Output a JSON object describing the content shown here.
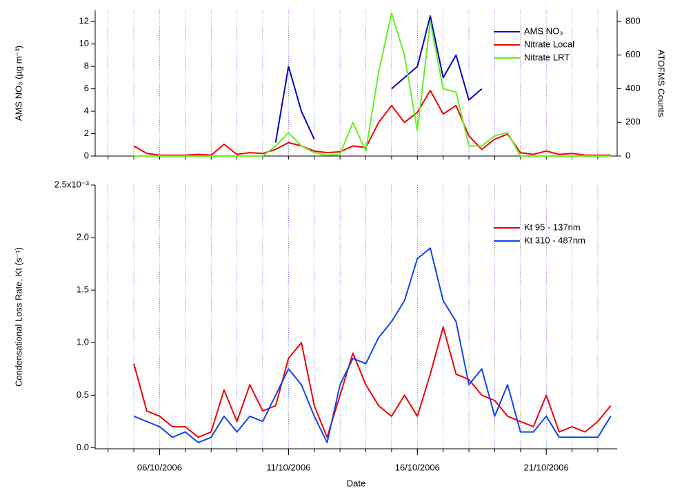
{
  "chart_data": [
    {
      "type": "line",
      "ylabel": "AMS NO₃ (µg m⁻³)",
      "y2label": "ATOFMS Counts",
      "xlim": [
        3.5,
        23.75
      ],
      "xgrid": [
        4,
        5,
        6,
        7,
        8,
        9,
        10,
        11,
        12,
        13,
        14,
        15,
        16,
        17,
        18,
        19,
        20,
        21,
        22,
        23
      ],
      "ylim": [
        0,
        13
      ],
      "yticks": [
        0,
        2,
        4,
        6,
        8,
        10,
        12
      ],
      "y2lim": [
        0,
        866
      ],
      "y2ticks": [
        0,
        200,
        400,
        600,
        800
      ],
      "x": [
        5,
        5.5,
        6,
        6.5,
        7,
        7.5,
        8,
        8.5,
        9,
        9.5,
        10,
        10.5,
        11,
        11.5,
        12,
        12.5,
        13,
        13.5,
        14,
        14.5,
        15,
        15.5,
        16,
        16.5,
        17,
        17.5,
        18,
        18.5,
        19,
        19.5,
        20,
        20.5,
        21,
        21.5,
        22,
        22.5,
        23,
        23.5
      ],
      "series": [
        {
          "name": "AMS NO₃",
          "color": "#0000cc",
          "values": [
            null,
            null,
            null,
            null,
            null,
            null,
            null,
            null,
            null,
            null,
            null,
            1.2,
            8,
            4,
            1.5,
            null,
            null,
            2.5,
            null,
            null,
            6,
            7,
            8,
            12.5,
            7,
            9,
            5,
            6,
            null,
            null,
            null,
            null,
            null,
            null,
            null,
            null,
            null,
            null
          ]
        },
        {
          "name": "Nitrate Local",
          "color": "#ee0000",
          "axis": "y2",
          "values": [
            60,
            15,
            5,
            5,
            5,
            10,
            5,
            70,
            10,
            20,
            15,
            40,
            80,
            60,
            30,
            20,
            25,
            60,
            50,
            200,
            300,
            200,
            260,
            390,
            250,
            300,
            120,
            40,
            100,
            130,
            20,
            10,
            30,
            10,
            15,
            5,
            5,
            5
          ]
        },
        {
          "name": "Nitrate LRT",
          "color": "#66ee22",
          "axis": "y2",
          "values": [
            0,
            0,
            0,
            0,
            0,
            0,
            0,
            0,
            0,
            0,
            0,
            60,
            140,
            60,
            20,
            5,
            10,
            200,
            30,
            500,
            850,
            600,
            150,
            800,
            400,
            380,
            60,
            60,
            120,
            140,
            0,
            0,
            0,
            0,
            0,
            0,
            0,
            0
          ]
        }
      ]
    },
    {
      "type": "line",
      "xlabel": "Date",
      "ylabel": "Condensational Loss Rate, Kt (s⁻¹)",
      "xlim": [
        3.5,
        23.75
      ],
      "xgrid": [
        4,
        5,
        6,
        7,
        8,
        9,
        10,
        11,
        12,
        13,
        14,
        15,
        16,
        17,
        18,
        19,
        20,
        21,
        22,
        23
      ],
      "xticks": [
        {
          "value": 6,
          "label": "06/10/2006"
        },
        {
          "value": 11,
          "label": "11/10/2006"
        },
        {
          "value": 16,
          "label": "16/10/2006"
        },
        {
          "value": 21,
          "label": "21/10/2006"
        }
      ],
      "ylim": [
        -0.01,
        2.5
      ],
      "yticks": [
        {
          "value": 0,
          "label": "0.0"
        },
        0.5,
        {
          "value": 1,
          "label": "1.0"
        },
        1.5,
        {
          "value": 2,
          "label": "2.0"
        },
        {
          "value": 2.5,
          "label": "2.5x10⁻³"
        }
      ],
      "x": [
        5,
        5.5,
        6,
        6.5,
        7,
        7.5,
        8,
        8.5,
        9,
        9.5,
        10,
        10.5,
        11,
        11.5,
        12,
        12.5,
        13,
        13.5,
        14,
        14.5,
        15,
        15.5,
        16,
        16.5,
        17,
        17.5,
        18,
        18.5,
        19,
        19.5,
        20,
        20.5,
        21,
        21.5,
        22,
        22.5,
        23,
        23.5
      ],
      "series": [
        {
          "name": "Kt 95 - 137nm",
          "color": "#ee0000",
          "values": [
            0.8,
            0.35,
            0.3,
            0.2,
            0.2,
            0.1,
            0.15,
            0.55,
            0.25,
            0.6,
            0.35,
            0.4,
            0.85,
            1.0,
            0.4,
            0.1,
            0.5,
            0.9,
            0.6,
            0.4,
            0.3,
            0.5,
            0.3,
            0.7,
            1.15,
            0.7,
            0.65,
            0.5,
            0.45,
            0.3,
            0.25,
            0.2,
            0.5,
            0.15,
            0.2,
            0.15,
            0.25,
            0.4
          ]
        },
        {
          "name": "Kt 310 - 487nm",
          "color": "#1144ee",
          "values": [
            0.3,
            0.25,
            0.2,
            0.1,
            0.15,
            0.05,
            0.1,
            0.3,
            0.15,
            0.3,
            0.25,
            0.5,
            0.75,
            0.6,
            0.3,
            0.05,
            0.6,
            0.85,
            0.8,
            1.05,
            1.2,
            1.4,
            1.8,
            1.9,
            1.4,
            1.2,
            0.6,
            0.75,
            0.3,
            0.6,
            0.15,
            0.15,
            0.3,
            0.1,
            0.1,
            0.1,
            0.1,
            0.3
          ]
        }
      ]
    }
  ]
}
